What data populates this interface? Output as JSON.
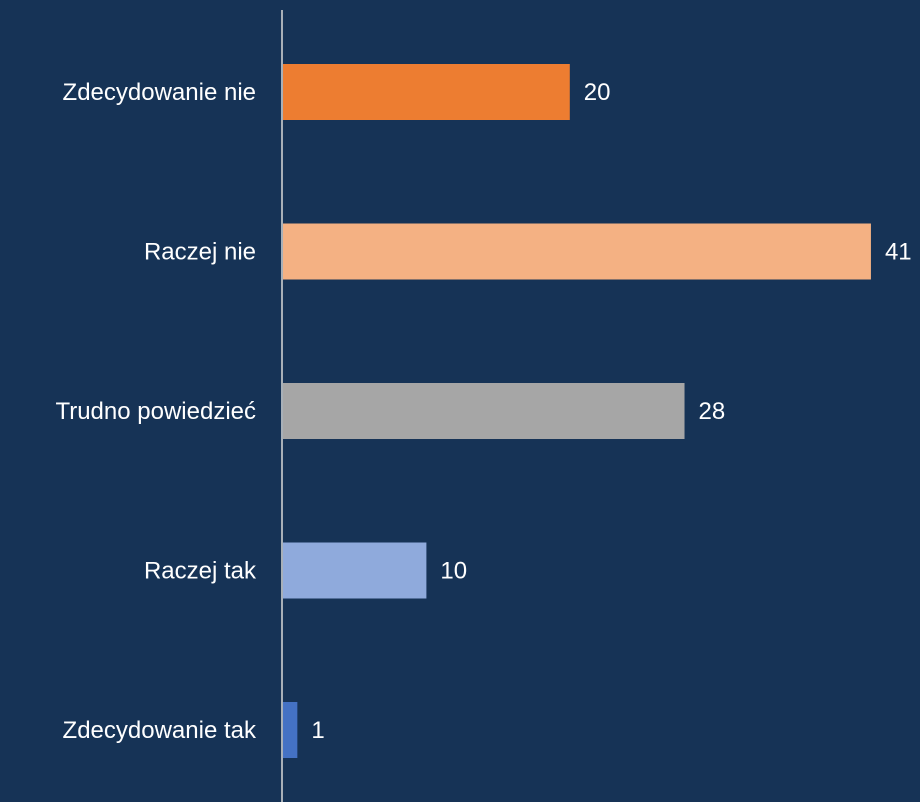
{
  "colors": {
    "background": "#163356",
    "axis": "#D9D9D9",
    "text": "#FFFFFF"
  },
  "chart_data": {
    "type": "bar",
    "orientation": "horizontal",
    "title": "",
    "xlabel": "",
    "ylabel": "",
    "grid": false,
    "legend": "none",
    "xlim": [
      0,
      41
    ],
    "categories": [
      "Zdecydowanie nie",
      "Raczej nie",
      "Trudno powiedzieć",
      "Raczej tak",
      "Zdecydowanie tak"
    ],
    "values": [
      20,
      41,
      28,
      10,
      1
    ],
    "value_labels": [
      "20",
      "41",
      "28",
      "10",
      "1"
    ],
    "bar_colors": [
      "#ED7D31",
      "#F4B183",
      "#A6A6A6",
      "#8FAADC",
      "#4472C4"
    ]
  }
}
